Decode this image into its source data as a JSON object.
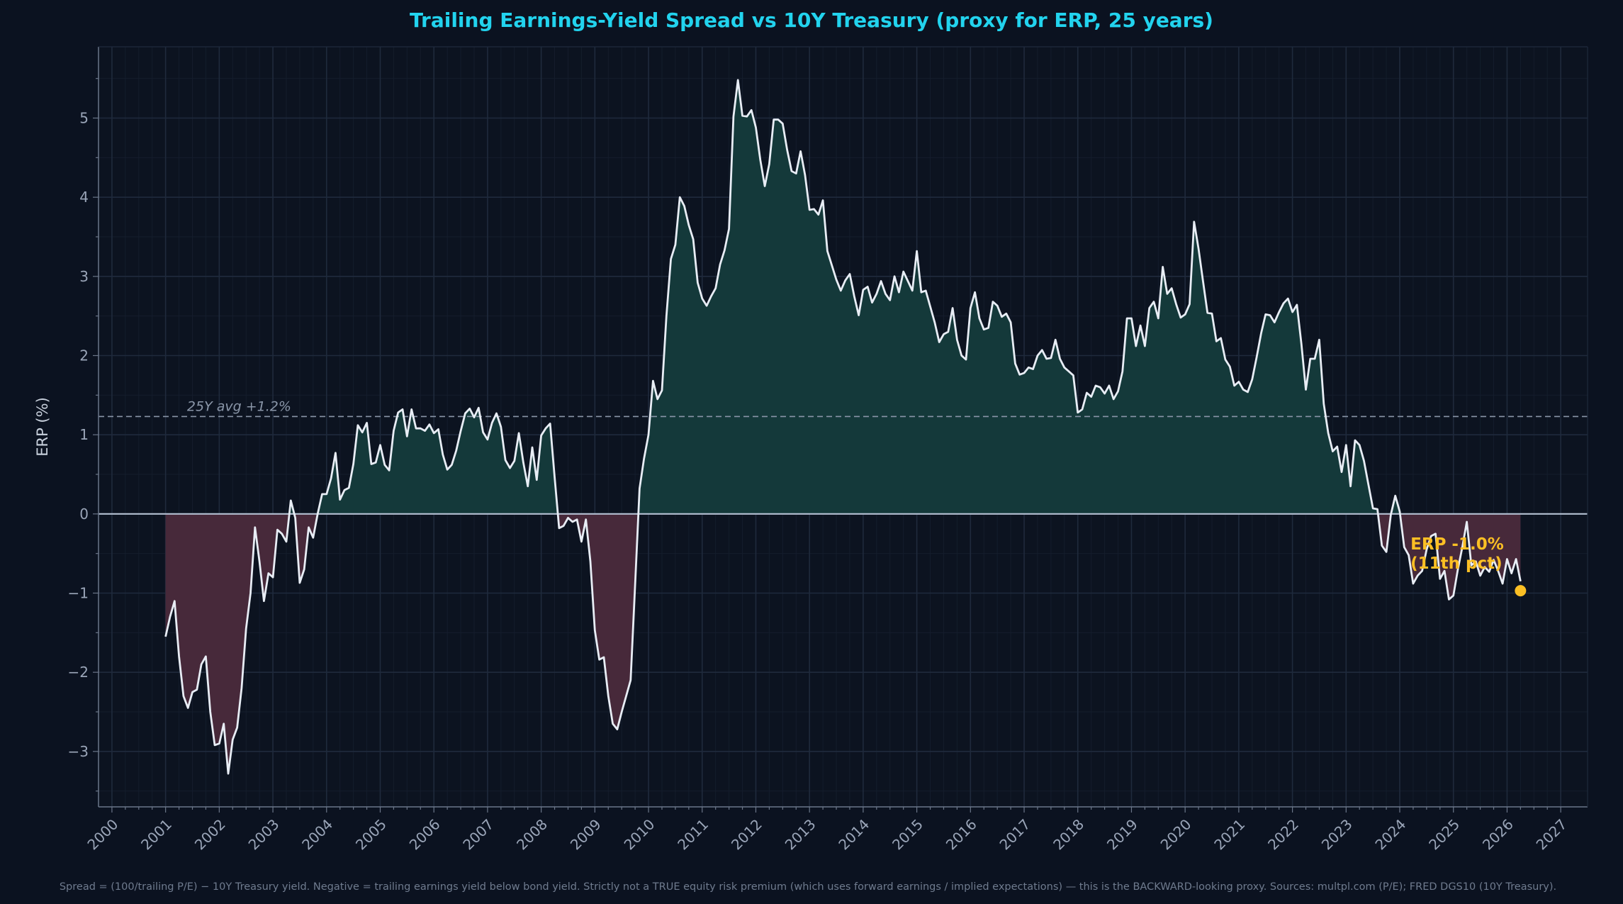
{
  "chart_data": {
    "type": "area",
    "title": "Trailing Earnings-Yield Spread vs 10Y Treasury  (proxy for ERP, 25 years)",
    "xlabel": "",
    "ylabel": "ERP (%)",
    "xlim": [
      1999.75,
      2027.5
    ],
    "ylim": [
      -3.7,
      5.9
    ],
    "xticks": [
      "2000",
      "2001",
      "2002",
      "2003",
      "2004",
      "2005",
      "2006",
      "2007",
      "2008",
      "2009",
      "2010",
      "2011",
      "2012",
      "2013",
      "2014",
      "2015",
      "2016",
      "2017",
      "2018",
      "2019",
      "2020",
      "2021",
      "2022",
      "2023",
      "2024",
      "2025",
      "2026",
      "2027"
    ],
    "yticks": [
      -3,
      -2,
      -1,
      0,
      1,
      2,
      3,
      4,
      5
    ],
    "ytick_labels": [
      "−3",
      "−2",
      "−1",
      "0",
      "1",
      "2",
      "3",
      "4",
      "5"
    ],
    "grid": true,
    "series_monthly_by_year": {
      "2001": [
        -1.55,
        -1.3,
        -1.1,
        -1.8,
        -2.3,
        -2.45,
        -2.25,
        -2.22,
        -1.9,
        -1.8,
        -2.5,
        -2.92
      ],
      "2002": [
        -2.9,
        -2.65,
        -3.28,
        -2.85,
        -2.7,
        -2.2,
        -1.45,
        -1.0,
        -0.17,
        -0.6,
        -1.1,
        -0.75
      ],
      "2003": [
        -0.8,
        -0.2,
        -0.25,
        -0.35,
        0.17,
        -0.05,
        -0.87,
        -0.7,
        -0.17,
        -0.3,
        0.0,
        0.25
      ],
      "2004": [
        0.25,
        0.45,
        0.77,
        0.18,
        0.3,
        0.33,
        0.63,
        1.12,
        1.03,
        1.15,
        0.63,
        0.65
      ],
      "2005": [
        0.87,
        0.62,
        0.55,
        1.05,
        1.28,
        1.32,
        0.98,
        1.32,
        1.08,
        1.08,
        1.05,
        1.13
      ],
      "2006": [
        1.02,
        1.07,
        0.75,
        0.56,
        0.62,
        0.8,
        1.05,
        1.27,
        1.33,
        1.22,
        1.34,
        1.03
      ],
      "2007": [
        0.94,
        1.15,
        1.27,
        1.1,
        0.68,
        0.58,
        0.67,
        1.02,
        0.65,
        0.35,
        0.84,
        0.43
      ],
      "2008": [
        0.99,
        1.08,
        1.14,
        0.47,
        -0.18,
        -0.15,
        -0.05,
        -0.1,
        -0.07,
        -0.35,
        -0.07,
        -0.6
      ],
      "2009": [
        -1.47,
        -1.84,
        -1.81,
        -2.3,
        -2.65,
        -2.72,
        -2.5,
        -2.3,
        -2.1,
        -0.9,
        0.32,
        0.7
      ],
      "2010": [
        1.0,
        1.68,
        1.45,
        1.56,
        2.5,
        3.22,
        3.4,
        4.0,
        3.89,
        3.65,
        3.47,
        2.92
      ],
      "2011": [
        2.72,
        2.63,
        2.75,
        2.85,
        3.15,
        3.33,
        3.6,
        5.02,
        5.48,
        5.03,
        5.02,
        5.1
      ],
      "2012": [
        4.88,
        4.47,
        4.14,
        4.42,
        4.98,
        4.98,
        4.93,
        4.6,
        4.33,
        4.3,
        4.58,
        4.28
      ],
      "2013": [
        3.84,
        3.85,
        3.78,
        3.96,
        3.32,
        3.14,
        2.96,
        2.82,
        2.95,
        3.03,
        2.75,
        2.51
      ],
      "2014": [
        2.83,
        2.87,
        2.67,
        2.78,
        2.94,
        2.78,
        2.7,
        3.0,
        2.8,
        3.06,
        2.94,
        2.82
      ],
      "2015": [
        3.32,
        2.8,
        2.82,
        2.62,
        2.42,
        2.17,
        2.27,
        2.3,
        2.6,
        2.2,
        2.0,
        1.95
      ],
      "2016": [
        2.6,
        2.8,
        2.47,
        2.33,
        2.35,
        2.68,
        2.63,
        2.49,
        2.53,
        2.42,
        1.9,
        1.76
      ],
      "2017": [
        1.78,
        1.85,
        1.83,
        2.0,
        2.07,
        1.96,
        1.97,
        2.2,
        1.96,
        1.85,
        1.8,
        1.75
      ],
      "2018": [
        1.28,
        1.32,
        1.53,
        1.48,
        1.62,
        1.6,
        1.52,
        1.62,
        1.45,
        1.55,
        1.8,
        2.47
      ],
      "2019": [
        2.47,
        2.12,
        2.38,
        2.12,
        2.6,
        2.68,
        2.47,
        3.12,
        2.78,
        2.85,
        2.65,
        2.48
      ],
      "2020": [
        2.52,
        2.65,
        3.69,
        3.35,
        2.94,
        2.54,
        2.53,
        2.18,
        2.22,
        1.95,
        1.86,
        1.62
      ],
      "2021": [
        1.67,
        1.57,
        1.54,
        1.7,
        1.98,
        2.28,
        2.52,
        2.51,
        2.42,
        2.55,
        2.66,
        2.72
      ],
      "2022": [
        2.55,
        2.64,
        2.15,
        1.57,
        1.96,
        1.96,
        2.2,
        1.39,
        1.02,
        0.79,
        0.85,
        0.53
      ],
      "2023": [
        0.87,
        0.35,
        0.93,
        0.87,
        0.67,
        0.37,
        0.07,
        0.06,
        -0.4,
        -0.48,
        -0.01,
        0.23
      ],
      "2024": [
        0.03,
        -0.42,
        -0.52,
        -0.88,
        -0.78,
        -0.72,
        -0.45,
        -0.28,
        -0.25,
        -0.82,
        -0.72,
        -1.08
      ],
      "2025": [
        -1.03,
        -0.7,
        -0.42,
        -0.1,
        -0.65,
        -0.6,
        -0.78,
        -0.67,
        -0.73,
        -0.58,
        -0.72,
        -0.88
      ],
      "2026": [
        -0.57,
        -0.75,
        -0.57,
        -0.85
      ]
    },
    "average": {
      "value": 1.23,
      "label": "25Y avg +1.2%"
    },
    "current": {
      "value": -0.97,
      "label_line1": "ERP -1.0%",
      "label_line2": "(11th pct)"
    },
    "footnote": "Spread = (100/trailing P/E) − 10Y Treasury yield. Negative = trailing earnings yield below bond yield. Strictly not a TRUE equity risk premium (which uses forward earnings / implied expectations) — this is the BACKWARD-looking proxy. Sources: multpl.com (P/E); FRED DGS10 (10Y Treasury).",
    "colors": {
      "background": "#0b1220",
      "plot_background": "#0c1320",
      "title": "#22d3ee",
      "line": "#e8edf5",
      "positive_fill": "#14393a",
      "negative_fill": "#47293a",
      "zero_line": "#b4c0d2",
      "average_line": "#8a96a8",
      "annotation": "#fbbf24",
      "grid": "#1c2638",
      "text": "#9aa5b8"
    }
  }
}
